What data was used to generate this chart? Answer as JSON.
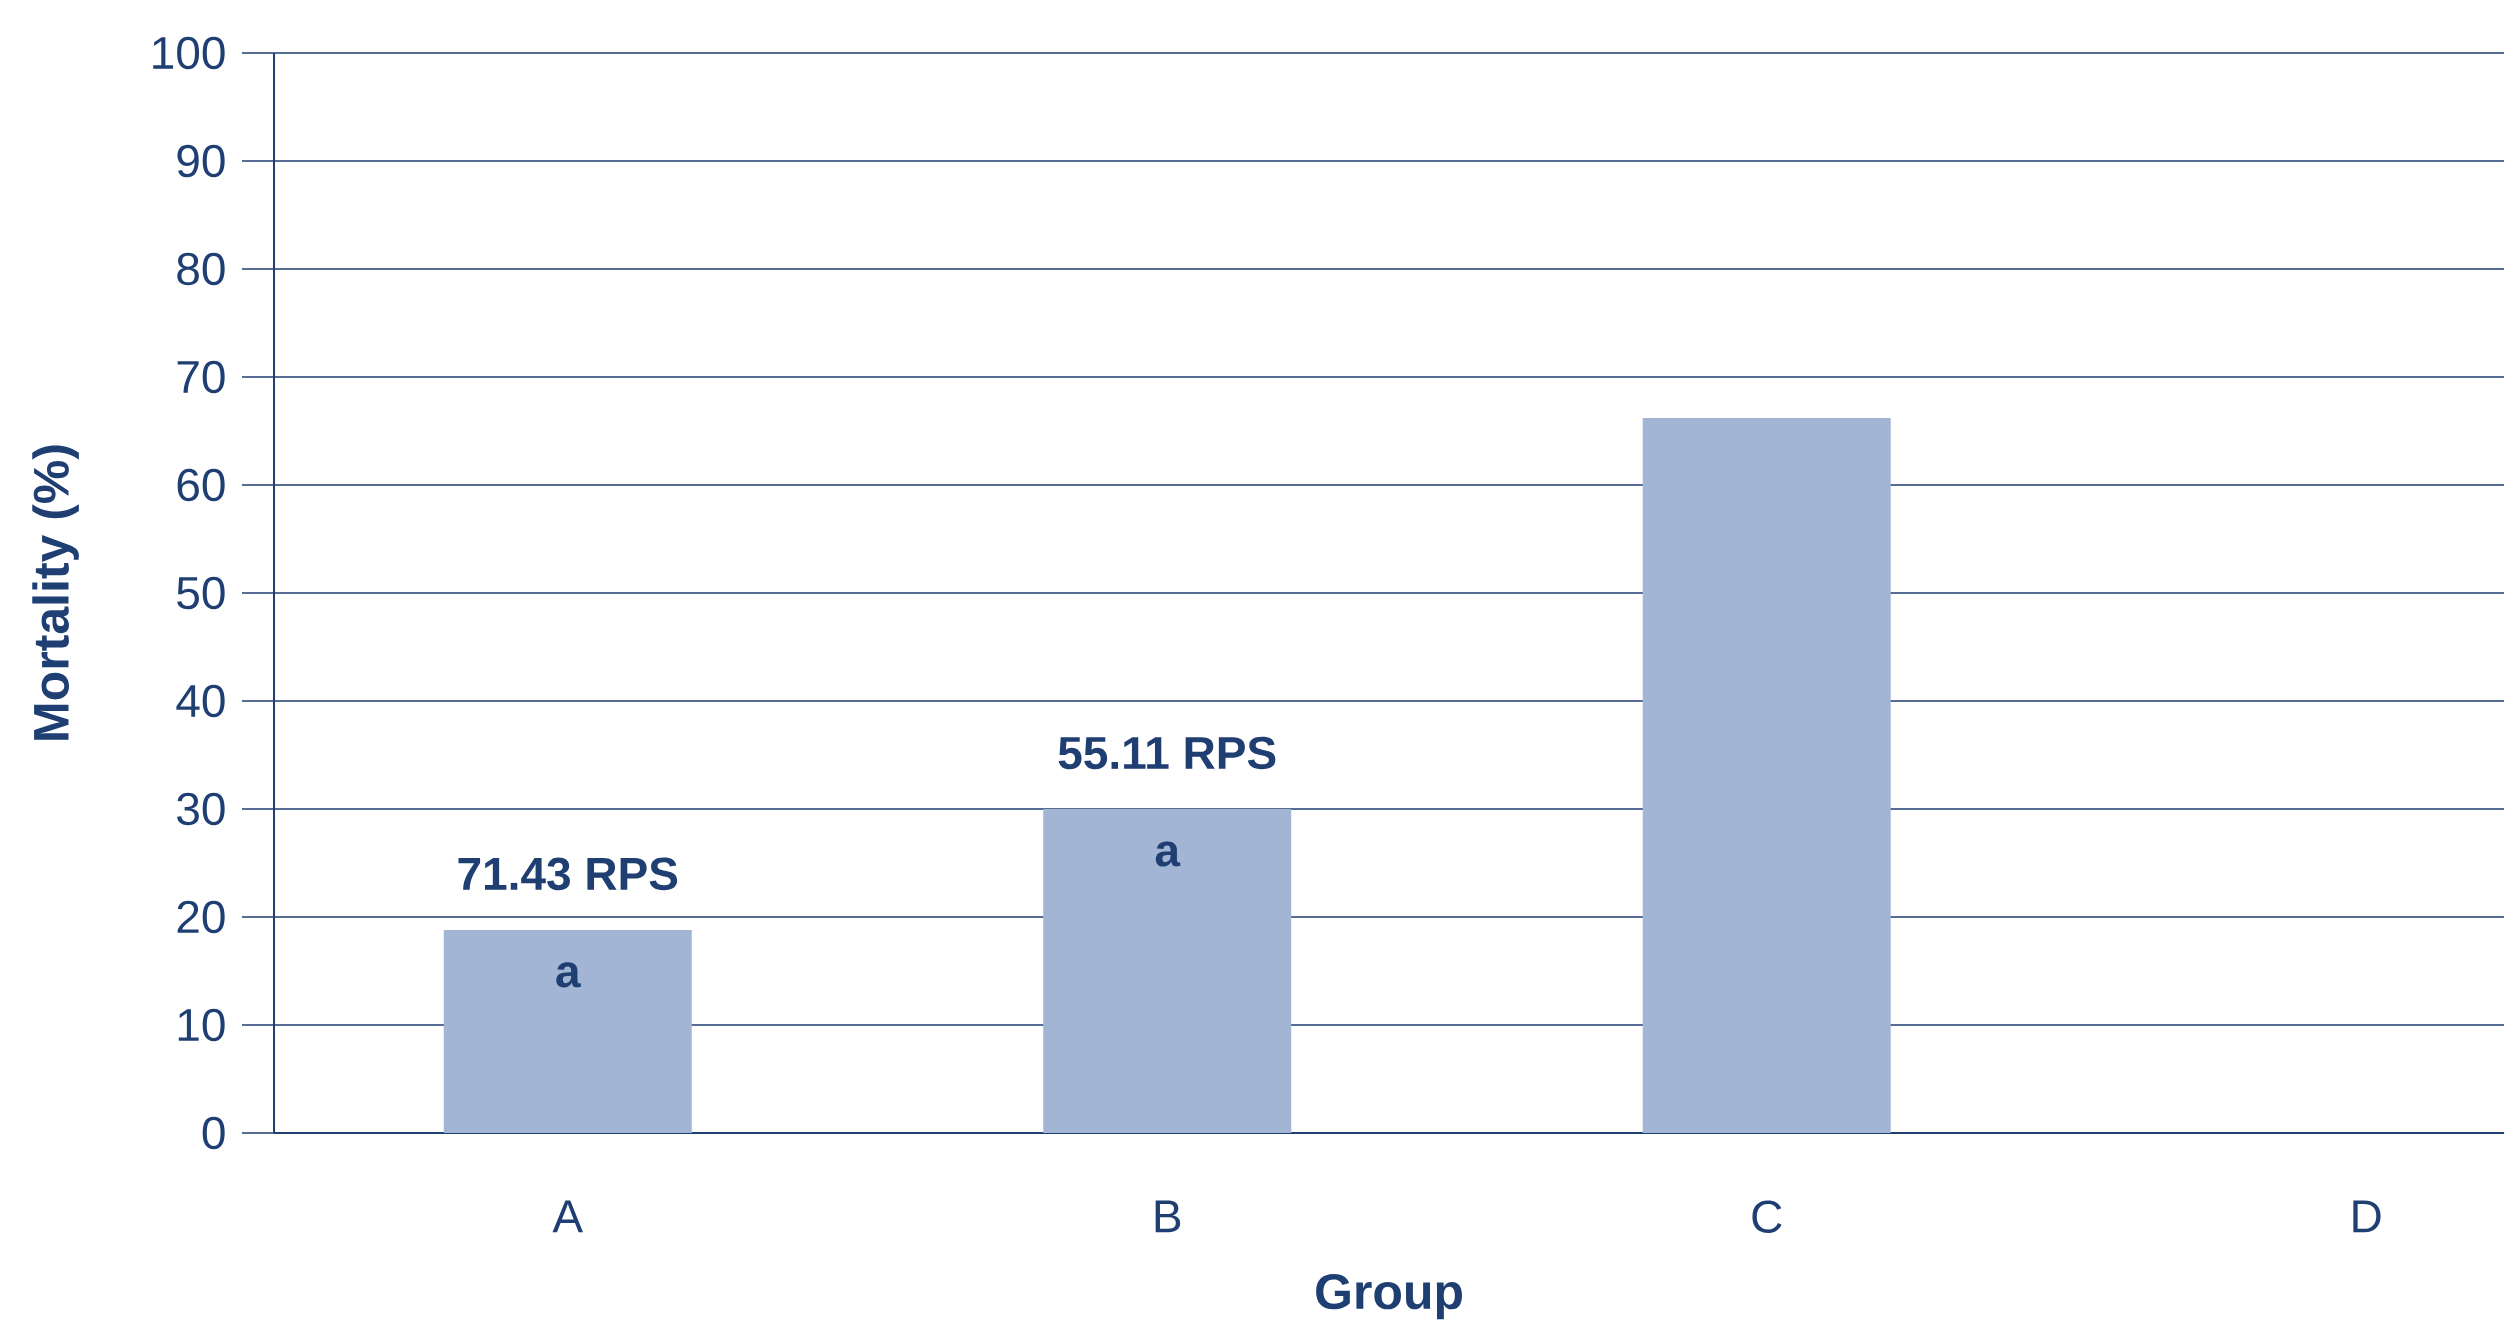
{
  "chart_data": {
    "type": "bar",
    "xlabel": "Group",
    "ylabel": "Mortality (%)",
    "categories": [
      "A",
      "B",
      "C",
      "D"
    ],
    "values": [
      18.8,
      30,
      66.2,
      0
    ],
    "color": "#a3b5d4",
    "ylim": [
      0,
      100
    ],
    "yticks": [
      0,
      10,
      20,
      30,
      40,
      50,
      60,
      70,
      80,
      90,
      100
    ],
    "grid": "y",
    "annotations": [
      "71.43 RPS",
      "a",
      "55.11 RPS",
      "a"
    ]
  }
}
